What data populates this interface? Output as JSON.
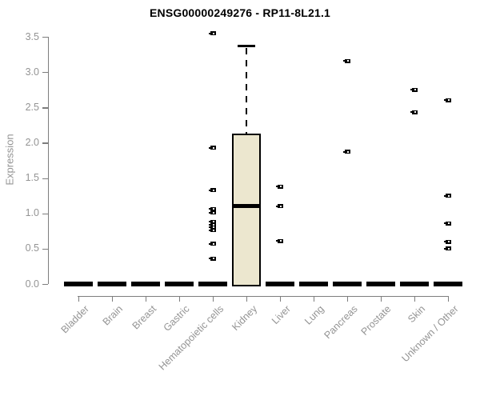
{
  "chart_data": {
    "type": "boxplot",
    "title": "ENSG00000249276 - RP11-8L21.1",
    "ylabel": "Expression",
    "xlabel": "",
    "ylim": [
      0,
      3.5
    ],
    "yticks": [
      0.0,
      0.5,
      1.0,
      1.5,
      2.0,
      2.5,
      3.0,
      3.5
    ],
    "grid": false,
    "legend": false,
    "box_fill_color": "#ECE7CF",
    "box_line_color": "#000000",
    "axis_color": "#7d7d7d",
    "label_color": "#949494",
    "categories": [
      "Bladder",
      "Brain",
      "Breast",
      "Gastric",
      "Hematopoietic cells",
      "Kidney",
      "Liver",
      "Lung",
      "Pancreas",
      "Prostate",
      "Skin",
      "Unknown / Other"
    ],
    "boxes": [
      {
        "category": "Bladder",
        "q1": 0,
        "median": 0,
        "q3": 0,
        "whisker_low": 0,
        "whisker_high": 0,
        "outliers": []
      },
      {
        "category": "Brain",
        "q1": 0,
        "median": 0,
        "q3": 0,
        "whisker_low": 0,
        "whisker_high": 0,
        "outliers": []
      },
      {
        "category": "Breast",
        "q1": 0,
        "median": 0,
        "q3": 0,
        "whisker_low": 0,
        "whisker_high": 0,
        "outliers": []
      },
      {
        "category": "Gastric",
        "q1": 0,
        "median": 0,
        "q3": 0,
        "whisker_low": 0,
        "whisker_high": 0,
        "outliers": []
      },
      {
        "category": "Hematopoietic cells",
        "q1": 0,
        "median": 0,
        "q3": 0,
        "whisker_low": 0,
        "whisker_high": 0,
        "outliers": [
          3.55,
          1.93,
          1.33,
          1.06,
          1.01,
          0.88,
          0.84,
          0.8,
          0.76,
          0.57,
          0.36
        ]
      },
      {
        "category": "Kidney",
        "q1": 0,
        "median": 1.1,
        "q3": 2.13,
        "whisker_low": 0,
        "whisker_high": 3.38,
        "outliers": []
      },
      {
        "category": "Liver",
        "q1": 0,
        "median": 0,
        "q3": 0,
        "whisker_low": 0,
        "whisker_high": 0,
        "outliers": [
          1.38,
          1.1,
          0.61
        ]
      },
      {
        "category": "Lung",
        "q1": 0,
        "median": 0,
        "q3": 0,
        "whisker_low": 0,
        "whisker_high": 0,
        "outliers": []
      },
      {
        "category": "Pancreas",
        "q1": 0,
        "median": 0,
        "q3": 0,
        "whisker_low": 0,
        "whisker_high": 0,
        "outliers": [
          3.16,
          1.87
        ]
      },
      {
        "category": "Prostate",
        "q1": 0,
        "median": 0,
        "q3": 0,
        "whisker_low": 0,
        "whisker_high": 0,
        "outliers": []
      },
      {
        "category": "Skin",
        "q1": 0,
        "median": 0,
        "q3": 0,
        "whisker_low": 0,
        "whisker_high": 0,
        "outliers": [
          2.75,
          2.43
        ]
      },
      {
        "category": "Unknown / Other",
        "q1": 0,
        "median": 0,
        "q3": 0,
        "whisker_low": 0,
        "whisker_high": 0,
        "outliers": [
          2.6,
          1.25,
          0.86,
          0.6,
          0.5
        ]
      }
    ]
  }
}
